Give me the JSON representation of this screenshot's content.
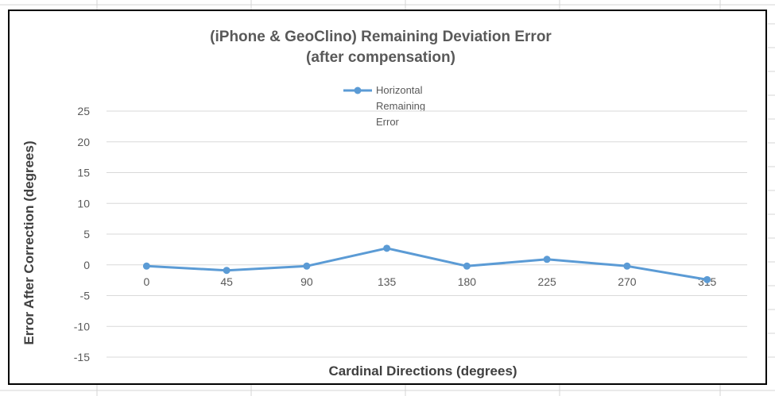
{
  "chart_data": {
    "type": "line",
    "title_lines": [
      "(iPhone & GeoClino) Remaining Deviation Error",
      "(after compensation)"
    ],
    "xlabel": "Cardinal Directions (degrees)",
    "ylabel": "Error After Correction (degrees)",
    "categories": [
      "0",
      "45",
      "90",
      "135",
      "180",
      "225",
      "270",
      "315"
    ],
    "series": [
      {
        "name_lines": [
          "Horizontal",
          "Remaining",
          "Error"
        ],
        "color": "#5B9BD5",
        "values": [
          -0.2,
          -0.9,
          -0.2,
          2.7,
          -0.2,
          0.9,
          -0.2,
          -2.4
        ]
      }
    ],
    "ylim": [
      -15,
      25
    ],
    "yticks": [
      "25",
      "20",
      "15",
      "10",
      "5",
      "0",
      "-5",
      "-10",
      "-15"
    ],
    "grid": true,
    "legend_position": "top"
  }
}
